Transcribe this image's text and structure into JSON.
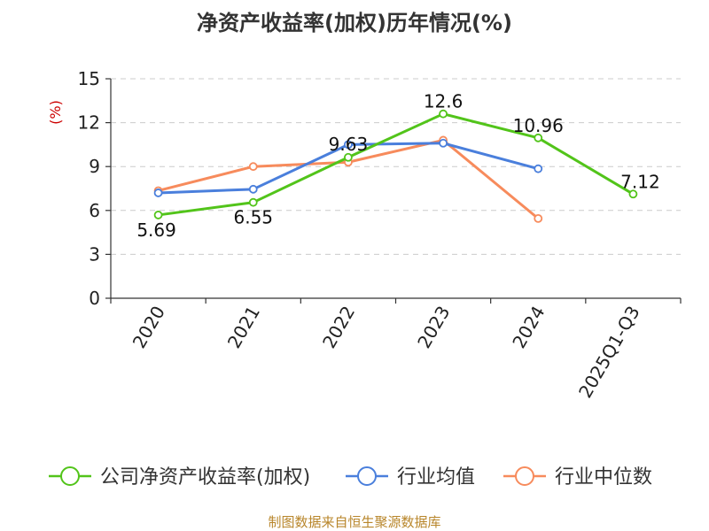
{
  "chart_data": {
    "type": "line",
    "title": "净资产收益率(加权)历年情况(%)",
    "ylabel": "(%)",
    "xlabel": "",
    "categories": [
      "2020",
      "2021",
      "2022",
      "2023",
      "2024",
      "2025Q1-Q3"
    ],
    "ylim": [
      0,
      15
    ],
    "yticks": [
      0,
      3,
      6,
      9,
      12,
      15
    ],
    "grid": true,
    "legend_position": "bottom",
    "series": [
      {
        "name": "公司净资产收益率(加权)",
        "color": "#52c41a",
        "values": [
          5.69,
          6.55,
          9.63,
          12.6,
          10.96,
          7.12
        ],
        "labels": [
          "5.69",
          "6.55",
          "9.63",
          "12.6",
          "10.96",
          "7.12"
        ]
      },
      {
        "name": "行业均值",
        "color": "#4a7fdc",
        "values": [
          7.2,
          7.45,
          10.5,
          10.6,
          8.85,
          null
        ]
      },
      {
        "name": "行业中位数",
        "color": "#f78b5c",
        "values": [
          7.35,
          9.0,
          9.3,
          10.8,
          5.45,
          null
        ]
      }
    ]
  },
  "source_text": "制图数据来自恒生聚源数据库",
  "colors": {
    "unit": "#cc0000",
    "source": "#b8862b",
    "grid": "#cccccc",
    "axis": "#333333"
  }
}
